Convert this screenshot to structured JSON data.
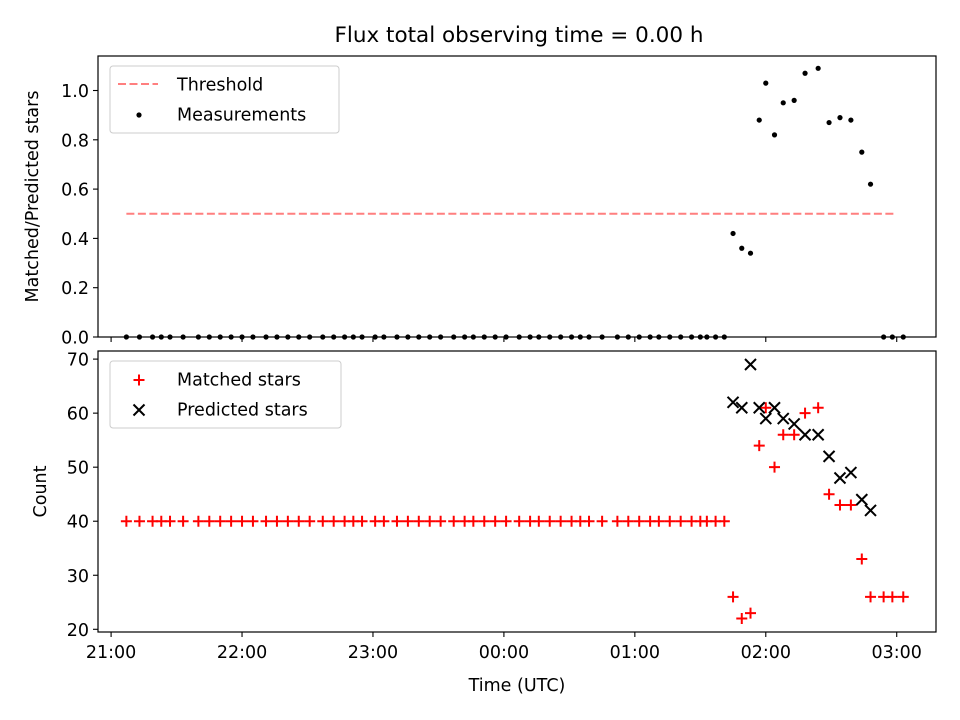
{
  "figure": {
    "title": "Flux total observing time = 0.00 h"
  },
  "chart_data": [
    {
      "type": "scatter",
      "title": "Flux total observing time = 0.00 h",
      "xlabel": "",
      "ylabel": "Matched/Predicted stars",
      "xlim": [
        "20:54",
        "03:18"
      ],
      "ylim": [
        0,
        1.14
      ],
      "x_tick_labels": [],
      "y_ticks": [
        0.0,
        0.2,
        0.4,
        0.6,
        0.8,
        1.0
      ],
      "y_tick_labels": [
        "0.0",
        "0.2",
        "0.4",
        "0.6",
        "0.8",
        "1.0"
      ],
      "grid": false,
      "legend_position": "top-left",
      "legend": [
        "Threshold",
        "Measurements"
      ],
      "colors": {
        "threshold": "#ff7f7f",
        "measurements": "#000000"
      },
      "threshold": {
        "name": "Threshold",
        "value": 0.5,
        "x": [
          "21:07",
          "02:59"
        ]
      },
      "series": [
        {
          "name": "Measurements",
          "x": [
            "21:07",
            "21:13",
            "21:19",
            "21:23",
            "21:27",
            "21:33",
            "21:40",
            "21:45",
            "21:50",
            "21:55",
            "22:00",
            "22:05",
            "22:11",
            "22:16",
            "22:21",
            "22:26",
            "22:31",
            "22:37",
            "22:42",
            "22:47",
            "22:51",
            "22:55",
            "23:01",
            "23:05",
            "23:11",
            "23:16",
            "23:21",
            "23:26",
            "23:31",
            "23:37",
            "23:42",
            "23:46",
            "23:51",
            "23:56",
            "00:01",
            "00:07",
            "00:12",
            "00:16",
            "00:21",
            "00:26",
            "00:31",
            "00:35",
            "00:39",
            "00:45",
            "00:52",
            "00:57",
            "01:02",
            "01:07",
            "01:11",
            "01:16",
            "01:21",
            "01:26",
            "01:30",
            "01:33",
            "01:37",
            "01:41",
            "01:45",
            "01:49",
            "01:53",
            "01:57",
            "02:00",
            "02:04",
            "02:08",
            "02:13",
            "02:18",
            "02:24",
            "02:29",
            "02:34",
            "02:39",
            "02:44",
            "02:48",
            "02:54",
            "02:58",
            "03:03"
          ],
          "y": [
            0.0,
            0.0,
            0.0,
            0.0,
            0.0,
            0.0,
            0.0,
            0.0,
            0.0,
            0.0,
            0.0,
            0.0,
            0.0,
            0.0,
            0.0,
            0.0,
            0.0,
            0.0,
            0.0,
            0.0,
            0.0,
            0.0,
            0.0,
            0.0,
            0.0,
            0.0,
            0.0,
            0.0,
            0.0,
            0.0,
            0.0,
            0.0,
            0.0,
            0.0,
            0.0,
            0.0,
            0.0,
            0.0,
            0.0,
            0.0,
            0.0,
            0.0,
            0.0,
            0.0,
            0.0,
            0.0,
            0.0,
            0.0,
            0.0,
            0.0,
            0.0,
            0.0,
            0.0,
            0.0,
            0.0,
            0.0,
            0.42,
            0.36,
            0.34,
            0.88,
            1.03,
            0.82,
            0.95,
            0.96,
            1.07,
            1.09,
            0.87,
            0.89,
            0.88,
            0.75,
            0.62,
            0.0,
            0.0,
            0.0
          ]
        }
      ]
    },
    {
      "type": "scatter",
      "title": "",
      "xlabel": "Time (UTC)",
      "ylabel": "Count",
      "xlim": [
        "20:54",
        "03:18"
      ],
      "ylim": [
        19.5,
        71.5
      ],
      "x_ticks": [
        "21:00",
        "22:00",
        "23:00",
        "00:00",
        "01:00",
        "02:00",
        "03:00"
      ],
      "y_ticks": [
        20,
        30,
        40,
        50,
        60,
        70
      ],
      "y_tick_labels": [
        "20",
        "30",
        "40",
        "50",
        "60",
        "70"
      ],
      "grid": false,
      "legend_position": "top-left",
      "legend": [
        "Matched stars",
        "Predicted stars"
      ],
      "colors": {
        "matched": "#ff0000",
        "predicted": "#000000"
      },
      "series": [
        {
          "name": "Matched stars",
          "marker": "+",
          "x": [
            "21:07",
            "21:13",
            "21:19",
            "21:23",
            "21:27",
            "21:33",
            "21:40",
            "21:45",
            "21:50",
            "21:55",
            "22:00",
            "22:05",
            "22:11",
            "22:16",
            "22:21",
            "22:26",
            "22:31",
            "22:37",
            "22:42",
            "22:47",
            "22:51",
            "22:55",
            "23:01",
            "23:05",
            "23:11",
            "23:16",
            "23:21",
            "23:26",
            "23:31",
            "23:37",
            "23:42",
            "23:46",
            "23:51",
            "23:56",
            "00:01",
            "00:07",
            "00:12",
            "00:16",
            "00:21",
            "00:26",
            "00:31",
            "00:35",
            "00:39",
            "00:45",
            "00:52",
            "00:57",
            "01:02",
            "01:07",
            "01:11",
            "01:16",
            "01:21",
            "01:26",
            "01:30",
            "01:33",
            "01:37",
            "01:41",
            "01:45",
            "01:49",
            "01:53",
            "01:57",
            "02:00",
            "02:04",
            "02:08",
            "02:13",
            "02:18",
            "02:24",
            "02:29",
            "02:34",
            "02:39",
            "02:44",
            "02:48",
            "02:54",
            "02:58",
            "03:03"
          ],
          "y": [
            40,
            40,
            40,
            40,
            40,
            40,
            40,
            40,
            40,
            40,
            40,
            40,
            40,
            40,
            40,
            40,
            40,
            40,
            40,
            40,
            40,
            40,
            40,
            40,
            40,
            40,
            40,
            40,
            40,
            40,
            40,
            40,
            40,
            40,
            40,
            40,
            40,
            40,
            40,
            40,
            40,
            40,
            40,
            40,
            40,
            40,
            40,
            40,
            40,
            40,
            40,
            40,
            40,
            40,
            40,
            40,
            26,
            22,
            23,
            54,
            61,
            50,
            56,
            56,
            60,
            61,
            45,
            43,
            43,
            33,
            26,
            26,
            26,
            26
          ]
        },
        {
          "name": "Predicted stars",
          "marker": "x",
          "x": [
            "01:45",
            "01:49",
            "01:53",
            "01:57",
            "02:00",
            "02:04",
            "02:08",
            "02:13",
            "02:18",
            "02:24",
            "02:29",
            "02:34",
            "02:39",
            "02:44",
            "02:48"
          ],
          "y": [
            62,
            61,
            69,
            61,
            59,
            61,
            59,
            58,
            56,
            56,
            52,
            48,
            49,
            44,
            42
          ]
        }
      ]
    }
  ]
}
